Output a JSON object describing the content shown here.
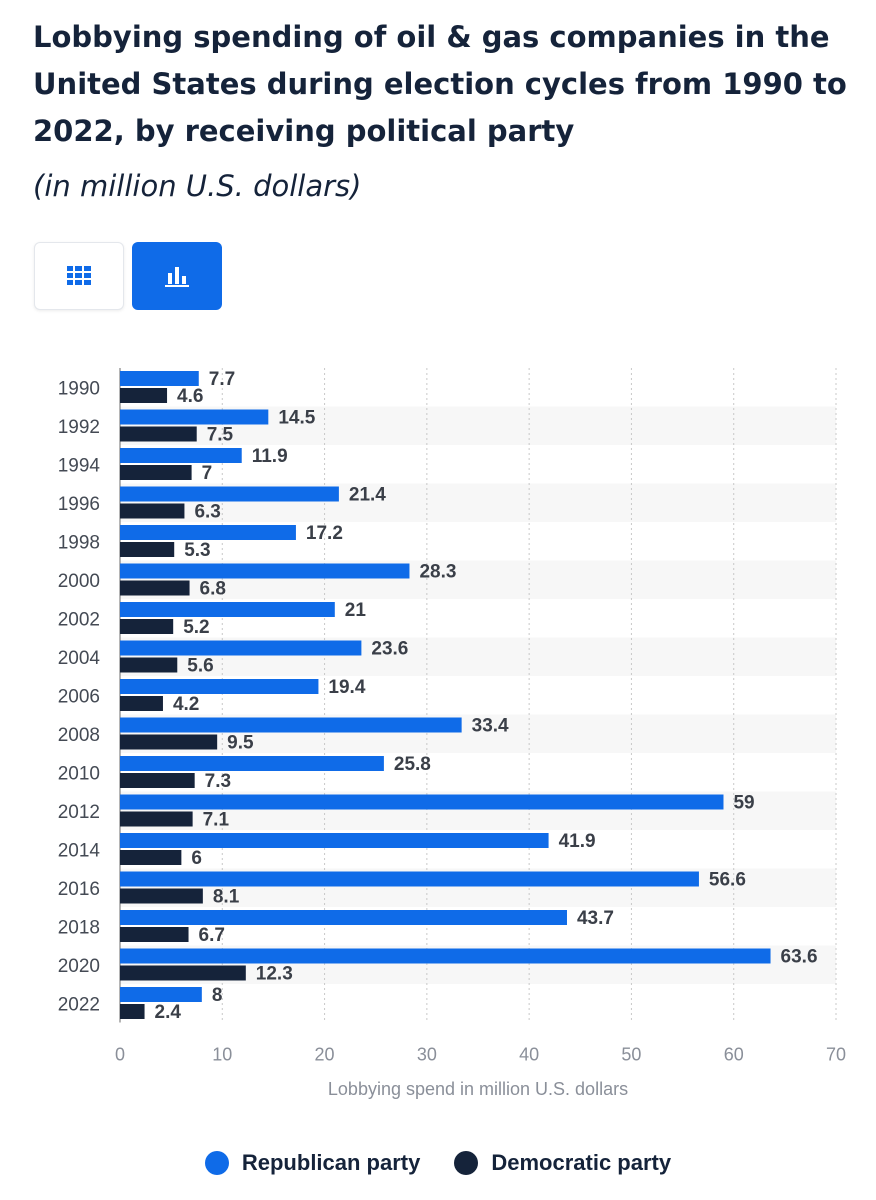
{
  "colors": {
    "republican": "#0f6be8",
    "democratic": "#15233a",
    "accent": "#0f6be8"
  },
  "view_toggle": {
    "table_icon": "table-grid-icon",
    "chart_icon": "bar-chart-icon",
    "active": "chart"
  },
  "chart_data": {
    "type": "bar",
    "orientation": "horizontal",
    "title": "Lobbying spending of oil & gas companies in the United States during election cycles from 1990 to 2022, by receiving political party",
    "subtitle": "(in million U.S. dollars)",
    "categories": [
      "1990",
      "1992",
      "1994",
      "1996",
      "1998",
      "2000",
      "2002",
      "2004",
      "2006",
      "2008",
      "2010",
      "2012",
      "2014",
      "2016",
      "2018",
      "2020",
      "2022"
    ],
    "series": [
      {
        "name": "Republican party",
        "values": [
          7.7,
          14.5,
          11.9,
          21.4,
          17.2,
          28.3,
          21,
          23.6,
          19.4,
          33.4,
          25.8,
          59,
          41.9,
          56.6,
          43.7,
          63.6,
          8
        ]
      },
      {
        "name": "Democratic party",
        "values": [
          4.6,
          7.5,
          7,
          6.3,
          5.3,
          6.8,
          5.2,
          5.6,
          4.2,
          9.5,
          7.3,
          7.1,
          6,
          8.1,
          6.7,
          12.3,
          2.4
        ]
      }
    ],
    "xlabel": "Lobbying spend in million U.S. dollars",
    "ylabel": "",
    "xlim": [
      0,
      70
    ],
    "xticks": [
      0,
      10,
      20,
      30,
      40,
      50,
      60,
      70
    ],
    "grid": "vertical dotted",
    "legend": "bottom-center"
  }
}
